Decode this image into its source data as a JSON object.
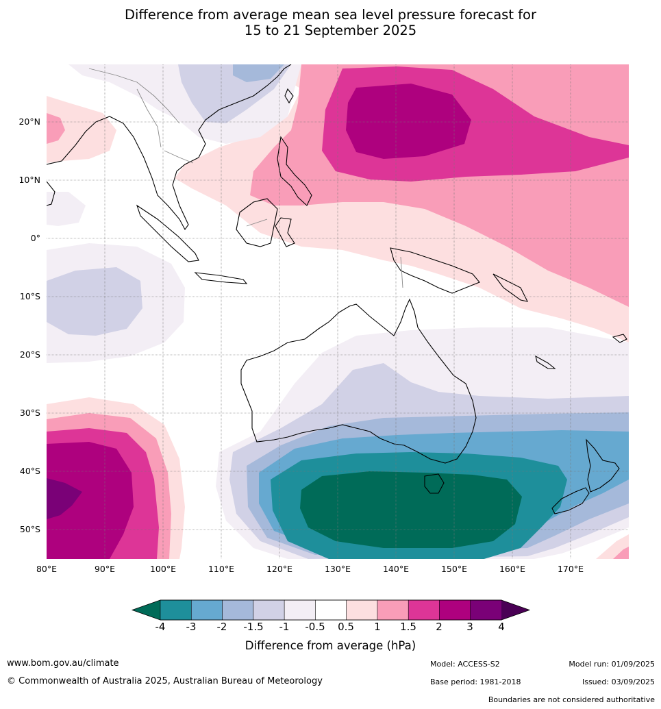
{
  "title_line1": "Difference from average mean sea level pressure forecast for",
  "title_line2": "15 to 21 September 2025",
  "map": {
    "lon_range": [
      80,
      180
    ],
    "lat_range": [
      -55,
      30
    ],
    "lat_labels": [
      "20°N",
      "10°N",
      "0°",
      "10°S",
      "20°S",
      "30°S",
      "40°S",
      "50°S"
    ],
    "lon_labels": [
      "80°E",
      "90°E",
      "100°E",
      "110°E",
      "120°E",
      "130°E",
      "140°E",
      "150°E",
      "160°E",
      "170°E"
    ],
    "regions_shown": [
      "Southeast Asia",
      "Maritime Continent",
      "Australia",
      "New Zealand",
      "Western Pacific",
      "Southern Ocean"
    ]
  },
  "colorbar": {
    "label": "Difference from average (hPa)",
    "ticks": [
      "-4",
      "-3",
      "-2",
      "-1.5",
      "-1",
      "-0.5",
      "0.5",
      "1",
      "1.5",
      "2",
      "3",
      "4"
    ],
    "colors": [
      "#006b58",
      "#1e8f9b",
      "#66a9d0",
      "#a5b9da",
      "#d1d1e6",
      "#f3eef5",
      "#ffffff",
      "#fddfe0",
      "#f99db8",
      "#dd3597",
      "#ae017e",
      "#7a0177",
      "#4a0055"
    ]
  },
  "footer": {
    "website": "www.bom.gov.au/climate",
    "copyright": "© Commonwealth of Australia 2025, Australian Bureau of Meteorology",
    "model": "Model: ACCESS-S2",
    "base_period": "Base period: 1981-2018",
    "model_run": "Model run: 01/09/2025",
    "issued": "Issued: 03/09/2025",
    "disclaimer": "Boundaries are not considered authoritative"
  }
}
